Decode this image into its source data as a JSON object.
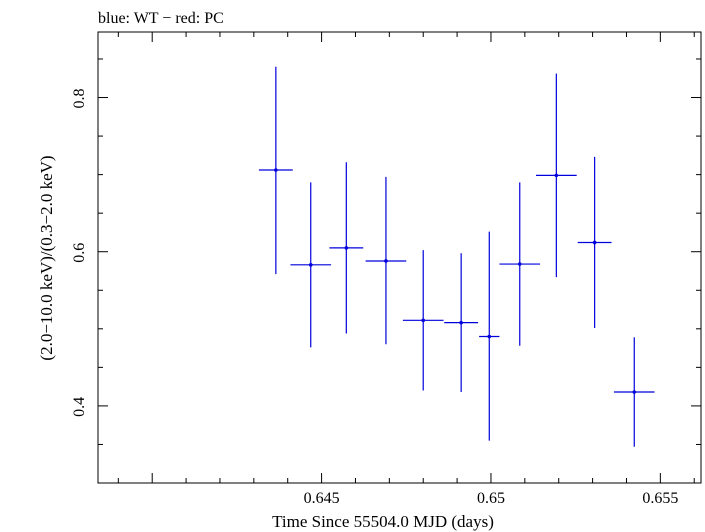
{
  "chart_data": {
    "type": "scatter",
    "title": "blue: WT − red: PC",
    "xlabel": "Time Since 55504.0 MJD (days)",
    "ylabel": "(2.0−10.0 keV)/(0.3−2.0 keV)",
    "xlim": [
      0.6384,
      0.6562
    ],
    "ylim": [
      0.3,
      0.885
    ],
    "x_ticks": [
      0.645,
      0.65,
      0.655
    ],
    "x_tick_labels": [
      "0.645",
      "0.65",
      "0.655"
    ],
    "y_ticks": [
      0.4,
      0.6,
      0.8
    ],
    "y_tick_labels": [
      "0.4",
      "0.6",
      "0.8"
    ],
    "grid": false,
    "legend": "none",
    "series": [
      {
        "name": "WT",
        "color": "#0000dd",
        "points": [
          {
            "x": 0.64365,
            "y": 0.706,
            "xerr": 0.0005,
            "ylo": 0.571,
            "yhi": 0.84
          },
          {
            "x": 0.64468,
            "y": 0.583,
            "xerr": 0.0006,
            "ylo": 0.476,
            "yhi": 0.69
          },
          {
            "x": 0.64573,
            "y": 0.605,
            "xerr": 0.0005,
            "ylo": 0.494,
            "yhi": 0.716
          },
          {
            "x": 0.6469,
            "y": 0.588,
            "xerr": 0.0006,
            "ylo": 0.48,
            "yhi": 0.697
          },
          {
            "x": 0.648,
            "y": 0.511,
            "xerr": 0.0006,
            "ylo": 0.42,
            "yhi": 0.602
          },
          {
            "x": 0.64912,
            "y": 0.508,
            "xerr": 0.0005,
            "ylo": 0.418,
            "yhi": 0.598
          },
          {
            "x": 0.64995,
            "y": 0.49,
            "xerr": 0.0003,
            "ylo": 0.355,
            "yhi": 0.626
          },
          {
            "x": 0.65085,
            "y": 0.584,
            "xerr": 0.0006,
            "ylo": 0.478,
            "yhi": 0.69
          },
          {
            "x": 0.65193,
            "y": 0.699,
            "xerr": 0.0006,
            "ylo": 0.567,
            "yhi": 0.831
          },
          {
            "x": 0.65306,
            "y": 0.612,
            "xerr": 0.0005,
            "ylo": 0.501,
            "yhi": 0.723
          },
          {
            "x": 0.65423,
            "y": 0.418,
            "xerr": 0.0006,
            "ylo": 0.347,
            "yhi": 0.489
          }
        ]
      }
    ]
  }
}
